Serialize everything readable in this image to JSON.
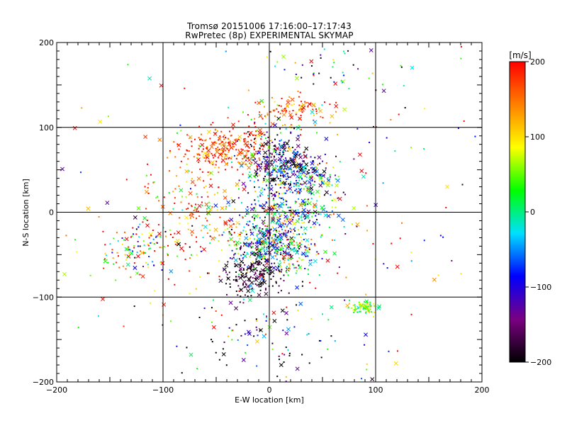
{
  "chart_data": {
    "type": "scatter",
    "title": "Tromsø 20151006 17:16:00–17:17:43",
    "subtitle": "RwPretec (8p) EXPERIMENTAL SKYMAP",
    "xlabel": "E-W location [km]",
    "ylabel": "N-S location [km]",
    "xlim": [
      -200,
      200
    ],
    "ylim": [
      -200,
      200
    ],
    "xticks": [
      "−200",
      "−100",
      "0",
      "100",
      "200"
    ],
    "yticks": [
      "−200",
      "−100",
      "0",
      "100",
      "200"
    ],
    "grid": true,
    "colorbar": {
      "label": "[m/s]",
      "range": [
        -200,
        200
      ],
      "ticks": [
        "200",
        "100",
        "0",
        "−100",
        "−200"
      ],
      "colormap": [
        "#000000",
        "#7a0082",
        "#0000ff",
        "#00e0ff",
        "#00ff00",
        "#ffff00",
        "#ff8000",
        "#ff0000"
      ]
    },
    "clusters": [
      {
        "x": -40,
        "y": 75,
        "sx": 22,
        "sy": 12,
        "n": 260,
        "v": 170,
        "sv": 40
      },
      {
        "x": 10,
        "y": 60,
        "sx": 18,
        "sy": 18,
        "n": 280,
        "v": -130,
        "sv": 90
      },
      {
        "x": 30,
        "y": 40,
        "sx": 20,
        "sy": 12,
        "n": 180,
        "v": -60,
        "sv": 110
      },
      {
        "x": 15,
        "y": 0,
        "sx": 25,
        "sy": 15,
        "n": 260,
        "v": -20,
        "sv": 110
      },
      {
        "x": -5,
        "y": -40,
        "sx": 20,
        "sy": 18,
        "n": 260,
        "v": -80,
        "sv": 130
      },
      {
        "x": -15,
        "y": -75,
        "sx": 14,
        "sy": 12,
        "n": 160,
        "v": -190,
        "sv": 25
      },
      {
        "x": 15,
        "y": -45,
        "sx": 18,
        "sy": 14,
        "n": 180,
        "v": 20,
        "sv": 100
      },
      {
        "x": -65,
        "y": 10,
        "sx": 25,
        "sy": 30,
        "n": 160,
        "v": 150,
        "sv": 70
      },
      {
        "x": -120,
        "y": -45,
        "sx": 20,
        "sy": 15,
        "n": 120,
        "v": 60,
        "sv": 150
      },
      {
        "x": 20,
        "y": 120,
        "sx": 22,
        "sy": 12,
        "n": 110,
        "v": 150,
        "sv": 60
      },
      {
        "x": 88,
        "y": -113,
        "sx": 6,
        "sy": 4,
        "n": 70,
        "v": 50,
        "sv": 40
      },
      {
        "x": 60,
        "y": 170,
        "sx": 30,
        "sy": 20,
        "n": 50,
        "v": -60,
        "sv": 130
      },
      {
        "x": 0,
        "y": -150,
        "sx": 40,
        "sy": 25,
        "n": 90,
        "v": -120,
        "sv": 120
      },
      {
        "x": 0,
        "y": 0,
        "sx": 90,
        "sy": 90,
        "n": 220,
        "v": 80,
        "sv": 160
      }
    ]
  }
}
